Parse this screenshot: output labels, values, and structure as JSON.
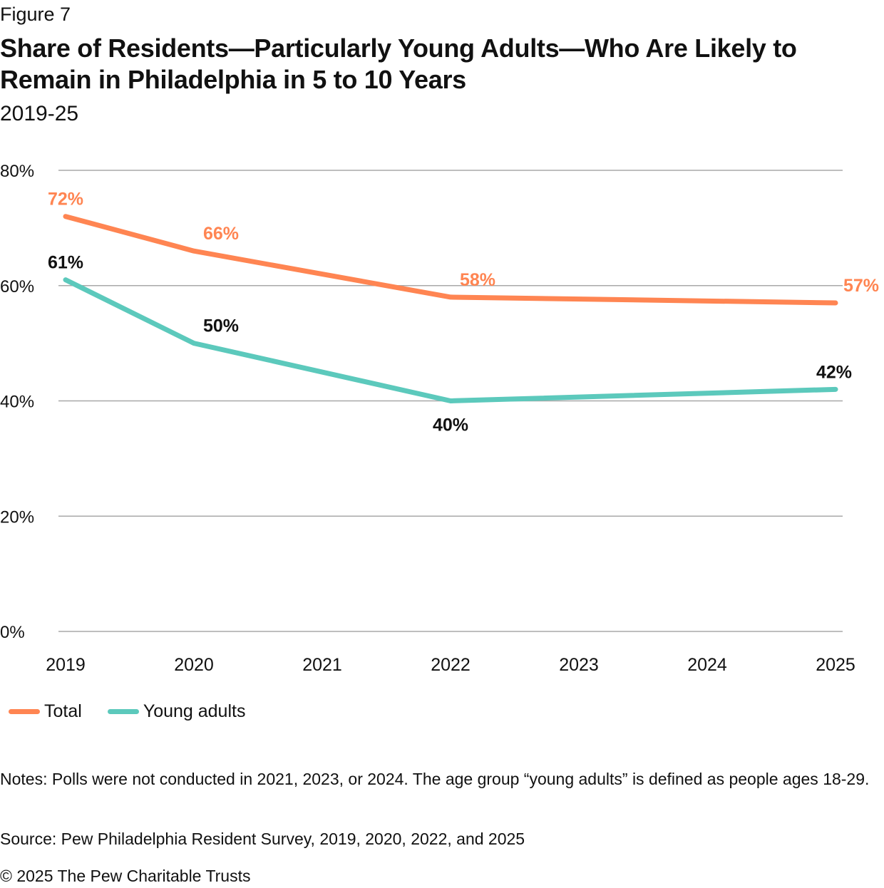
{
  "figure_label": "Figure 7",
  "title": "Share of Residents—Particularly Young Adults—Who Are Likely to Remain in Philadelphia in 5 to 10 Years",
  "subtitle": "2019-25",
  "notes": "Notes: Polls were not conducted in 2021, 2023, or 2024. The age group “young adults” is defined as people ages 18-29.",
  "source": "Source: Pew Philadelphia Resident Survey, 2019, 2020, 2022, and 2025",
  "copyright": "© 2025 The Pew Charitable Trusts",
  "colors": {
    "total": "#FF8552",
    "young_adults": "#5CC9BC",
    "grid": "#A8A8A8",
    "text": "#111111"
  },
  "chart_data": {
    "type": "line",
    "x": [
      2019,
      2020,
      2021,
      2022,
      2023,
      2024,
      2025
    ],
    "x_tick_labels": [
      "2019",
      "2020",
      "2021",
      "2022",
      "2023",
      "2024",
      "2025"
    ],
    "y_tick_labels": [
      "0%",
      "20%",
      "40%",
      "60%",
      "80%"
    ],
    "y_ticks": [
      0,
      20,
      40,
      60,
      80
    ],
    "ylim": [
      0,
      80
    ],
    "grid": true,
    "legend_position": "bottom-left",
    "series": [
      {
        "name": "Total",
        "color": "#FF8552",
        "points": [
          {
            "x": 2019,
            "y": 72,
            "label": "72%"
          },
          {
            "x": 2020,
            "y": 66,
            "label": "66%"
          },
          {
            "x": 2022,
            "y": 58,
            "label": "58%"
          },
          {
            "x": 2025,
            "y": 57,
            "label": "57%"
          }
        ]
      },
      {
        "name": "Young adults",
        "color": "#5CC9BC",
        "points": [
          {
            "x": 2019,
            "y": 61,
            "label": "61%"
          },
          {
            "x": 2020,
            "y": 50,
            "label": "50%"
          },
          {
            "x": 2022,
            "y": 40,
            "label": "40%"
          },
          {
            "x": 2025,
            "y": 42,
            "label": "42%"
          }
        ]
      }
    ]
  }
}
